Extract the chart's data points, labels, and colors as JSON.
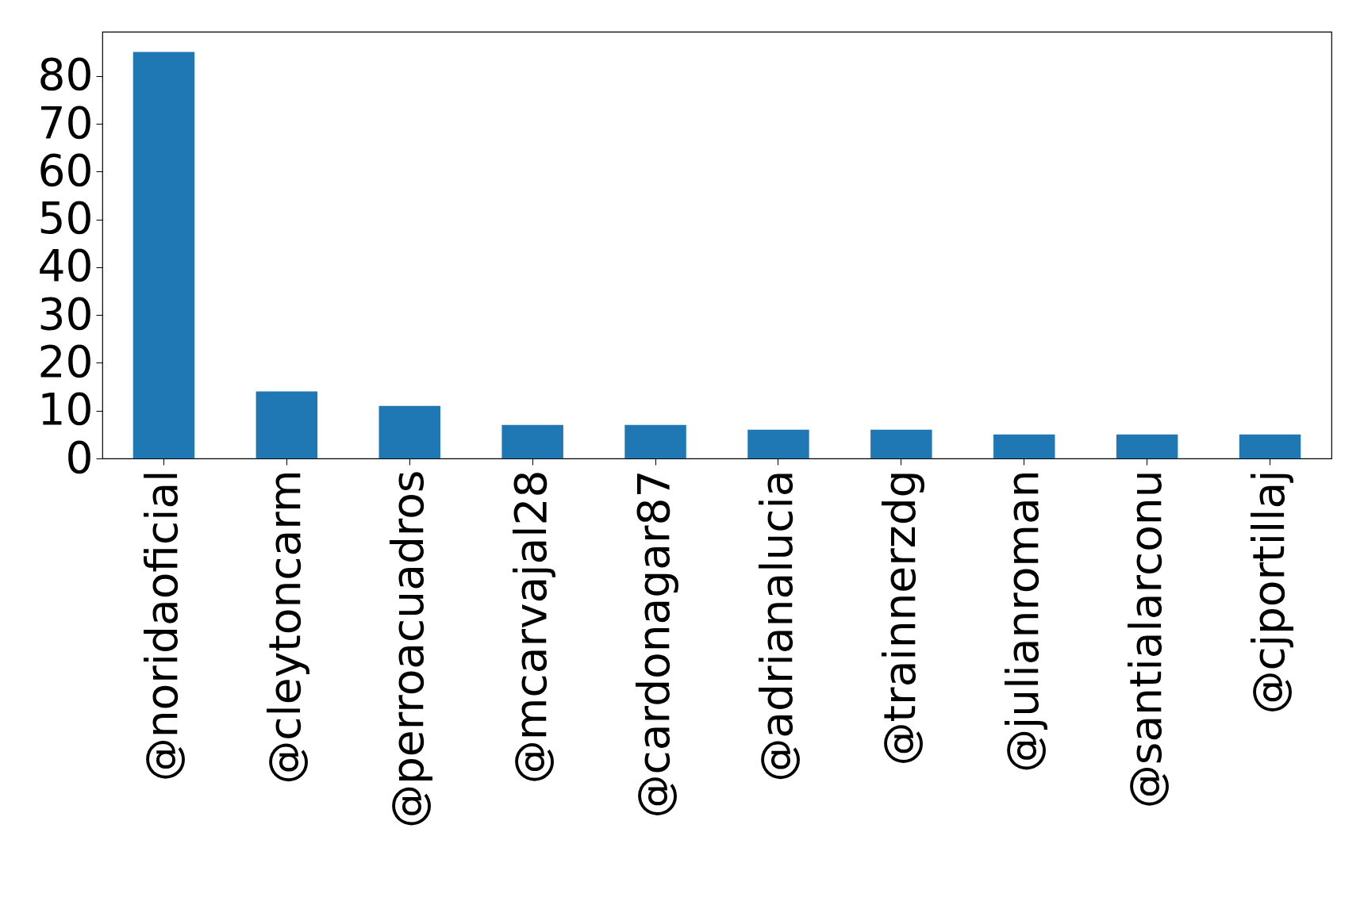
{
  "chart_data": {
    "type": "bar",
    "categories": [
      "@noridaoficial",
      "@cleytoncarm",
      "@perroacuadros",
      "@mcarvajal28",
      "@cardonagar87",
      "@adrianalucia",
      "@trainnerzdg",
      "@julianroman",
      "@santialarconu",
      "@cjportillaj"
    ],
    "values": [
      85,
      14,
      11,
      7,
      7,
      6,
      6,
      5,
      5,
      5
    ],
    "color": "#1f77b4",
    "ylim": [
      0,
      89.25
    ],
    "yticks": [
      0,
      10,
      20,
      30,
      40,
      50,
      60,
      70,
      80
    ],
    "grid": false
  }
}
